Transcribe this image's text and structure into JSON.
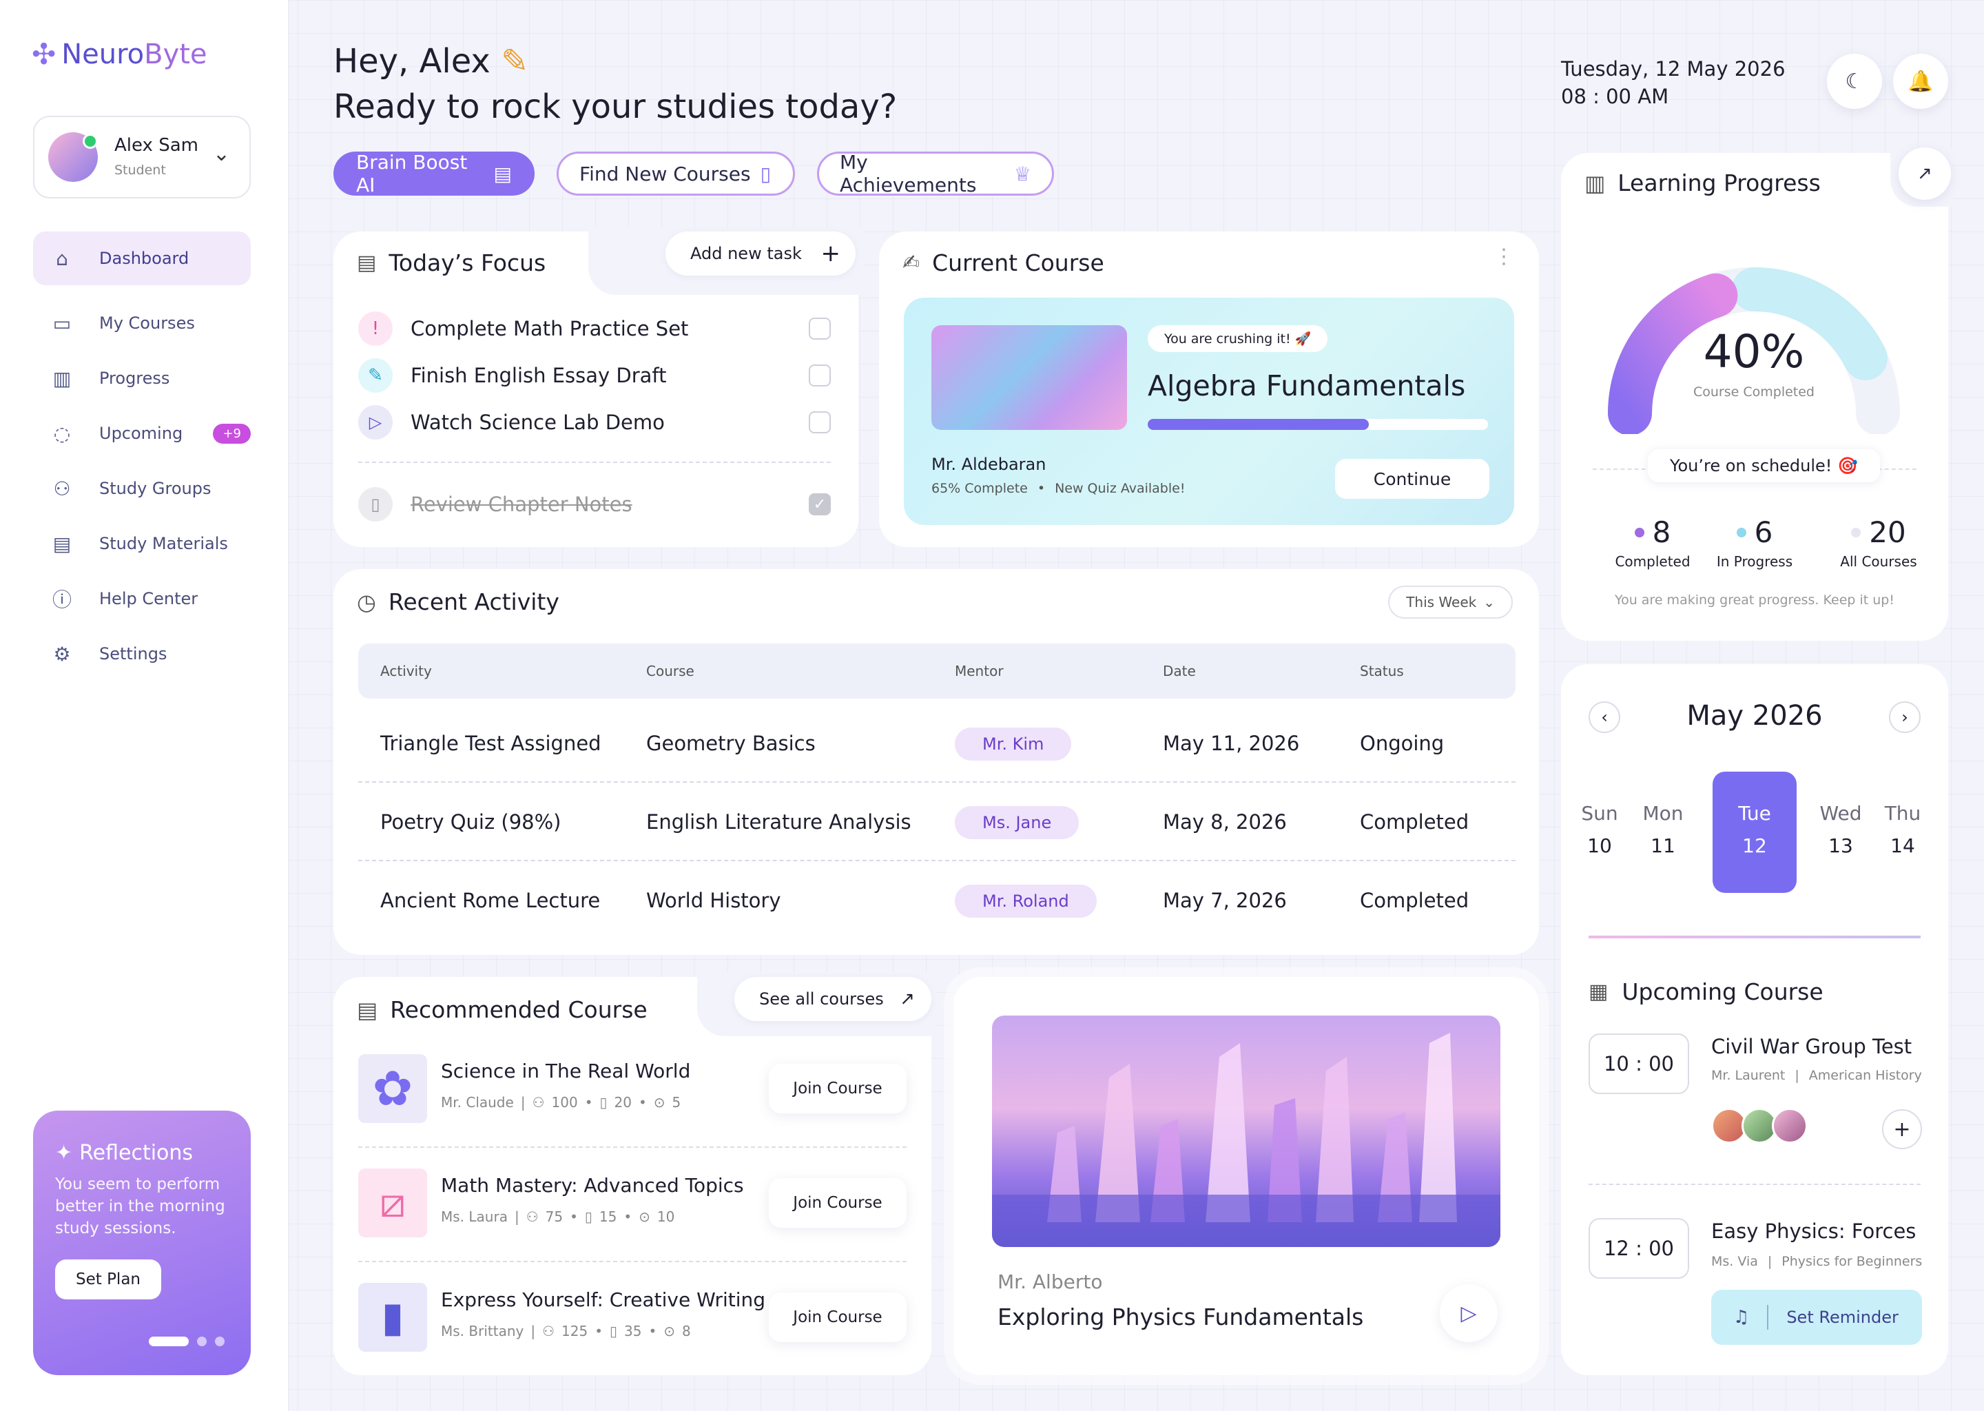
{
  "app": {
    "name_a": "Neuro",
    "name_b": "Byte"
  },
  "user": {
    "name": "Alex Sam",
    "role": "Student"
  },
  "nav": [
    {
      "label": "Dashboard",
      "icon": "home-icon"
    },
    {
      "label": "My Courses",
      "icon": "folder-icon"
    },
    {
      "label": "Progress",
      "icon": "bar-chart-icon"
    },
    {
      "label": "Upcoming",
      "icon": "bulb-icon",
      "badge": "+9"
    },
    {
      "label": "Study Groups",
      "icon": "users-icon"
    },
    {
      "label": "Study Materials",
      "icon": "document-icon"
    },
    {
      "label": "Help Center",
      "icon": "help-icon"
    },
    {
      "label": "Settings",
      "icon": "gear-icon"
    }
  ],
  "reflections": {
    "title": "Reflections",
    "text": "You seem to perform better in the morning study sessions.",
    "button": "Set Plan"
  },
  "header": {
    "greeting": "Hey, Alex",
    "subtitle": "Ready to rock your studies today?",
    "date": "Tuesday, 12 May 2026",
    "time": "08 : 00 AM"
  },
  "chips": [
    "Brain Boost AI",
    "Find New Courses",
    "My Achievements"
  ],
  "focus": {
    "title": "Today’s Focus",
    "add": "Add new task",
    "tasks": [
      {
        "label": "Complete Math Practice Set",
        "icon": "!",
        "done": false
      },
      {
        "label": "Finish English Essay Draft",
        "icon": "✎",
        "done": false
      },
      {
        "label": "Watch Science Lab Demo",
        "icon": "▷",
        "done": false
      },
      {
        "label": "Review Chapter Notes",
        "icon": "▯",
        "done": true
      }
    ]
  },
  "current": {
    "title": "Current Course",
    "tag": "You are crushing it! 🚀",
    "course": "Algebra Fundamentals",
    "progress": 0.65,
    "mentor": "Mr. Aldebaran",
    "complete": "65% Complete",
    "quiz": "New Quiz Available!",
    "button": "Continue"
  },
  "activity": {
    "title": "Recent Activity",
    "filter": "This Week",
    "headers": [
      "Activity",
      "Course",
      "Mentor",
      "Date",
      "Status"
    ],
    "rows": [
      [
        "Triangle Test Assigned",
        "Geometry Basics",
        "Mr. Kim",
        "May 11, 2026",
        "Ongoing"
      ],
      [
        "Poetry Quiz (98%)",
        "English Literature Analysis",
        "Ms. Jane",
        "May 8, 2026",
        "Completed"
      ],
      [
        "Ancient Rome Lecture",
        "World History",
        "Mr. Roland",
        "May 7, 2026",
        "Completed"
      ]
    ]
  },
  "recommended": {
    "title": "Recommended Course",
    "see_all": "See all courses",
    "join": "Join Course",
    "courses": [
      {
        "title": "Science in The Real World",
        "mentor": "Mr. Claude",
        "students": "100",
        "lessons": "20",
        "videos": "5",
        "color": "#7a6cf0"
      },
      {
        "title": "Math Mastery: Advanced Topics",
        "mentor": "Ms. Laura",
        "students": "75",
        "lessons": "15",
        "videos": "10",
        "color": "#f06aa8"
      },
      {
        "title": "Express Yourself: Creative Writing",
        "mentor": "Ms. Brittany",
        "students": "125",
        "lessons": "35",
        "videos": "8",
        "color": "#5a5ad8"
      }
    ]
  },
  "video": {
    "mentor": "Mr. Alberto",
    "title": "Exploring Physics Fundamentals"
  },
  "progress": {
    "title": "Learning Progress",
    "percent": "40%",
    "percent_value": 0.4,
    "label": "Course Completed",
    "schedule": "You’re on schedule! 🎯",
    "stats": [
      {
        "value": "8",
        "label": "Completed",
        "color": "#a06ae0"
      },
      {
        "value": "6",
        "label": "In Progress",
        "color": "#8fd8f0"
      },
      {
        "value": "20",
        "label": "All Courses",
        "color": "#e6e6f0"
      }
    ],
    "footer": "You are making great progress. Keep it up!"
  },
  "calendar": {
    "month": "May 2026",
    "days": [
      {
        "d": "Sun",
        "n": "10"
      },
      {
        "d": "Mon",
        "n": "11"
      },
      {
        "d": "Tue",
        "n": "12",
        "active": true
      },
      {
        "d": "Wed",
        "n": "13"
      },
      {
        "d": "Thu",
        "n": "14"
      }
    ]
  },
  "upcoming": {
    "title": "Upcoming Course",
    "items": [
      {
        "time": "10 : 00",
        "title": "Civil War Group Test",
        "mentor": "Mr. Laurent",
        "course": "American History"
      },
      {
        "time": "12 : 00",
        "title": "Easy Physics: Forces",
        "mentor": "Ms. Via",
        "course": "Physics for Beginners",
        "button": "Set Reminder"
      }
    ]
  }
}
